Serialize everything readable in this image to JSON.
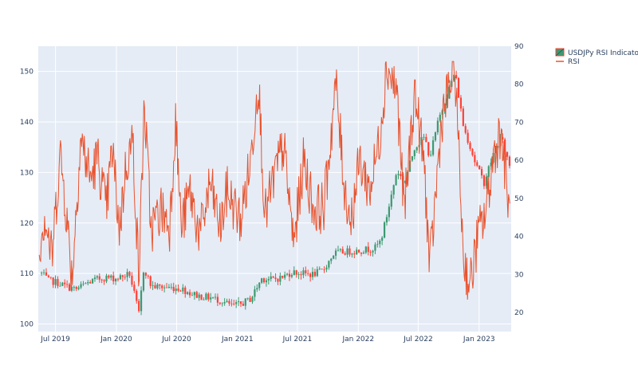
{
  "chart_data": {
    "type": "candlestick+line",
    "title": "",
    "legend": {
      "placement": "top-right",
      "entries": [
        "USDJPy RSI Indicator",
        "RSI"
      ]
    },
    "x_axis": {
      "range": [
        "2019-05-10",
        "2023-04-08"
      ],
      "tick_labels": [
        {
          "date": "2019-07-01",
          "label": "Jul 2019"
        },
        {
          "date": "2020-01-01",
          "label": "Jan 2020"
        },
        {
          "date": "2020-07-01",
          "label": "Jul 2020"
        },
        {
          "date": "2021-01-01",
          "label": "Jan 2021"
        },
        {
          "date": "2021-07-01",
          "label": "Jul 2021"
        },
        {
          "date": "2022-01-01",
          "label": "Jan 2022"
        },
        {
          "date": "2022-07-01",
          "label": "Jul 2022"
        },
        {
          "date": "2023-01-01",
          "label": "Jan 2023"
        }
      ],
      "grid": true
    },
    "y_axis_left": {
      "range": [
        98.5,
        155
      ],
      "ticks": [
        100,
        110,
        120,
        130,
        140,
        150
      ],
      "grid": true
    },
    "y_axis_right": {
      "range": [
        15,
        90
      ],
      "ticks": [
        20,
        30,
        40,
        50,
        60,
        70,
        80,
        90
      ],
      "grid": false
    },
    "colors": {
      "candle_up": "#3D9970",
      "candle_down": "#FF4136",
      "rsi_line": "#E8532E",
      "plot_bg": "#E5ECF6",
      "grid": "#ffffff"
    },
    "series": [
      {
        "name": "USDJPy RSI Indicator",
        "kind": "candlestick",
        "axis": "left",
        "approx_close": [
          [
            "2019-05-20",
            110.0
          ],
          [
            "2019-06-10",
            108.6
          ],
          [
            "2019-07-01",
            108.3
          ],
          [
            "2019-08-01",
            107.5
          ],
          [
            "2019-09-01",
            106.8
          ],
          [
            "2019-10-01",
            108.0
          ],
          [
            "2019-11-01",
            108.8
          ],
          [
            "2019-12-01",
            109.2
          ],
          [
            "2020-01-01",
            109.0
          ],
          [
            "2020-02-10",
            109.9
          ],
          [
            "2020-03-09",
            102.0
          ],
          [
            "2020-03-24",
            111.2
          ],
          [
            "2020-04-15",
            107.5
          ],
          [
            "2020-05-15",
            107.3
          ],
          [
            "2020-06-15",
            107.2
          ],
          [
            "2020-07-15",
            107.0
          ],
          [
            "2020-08-15",
            106.0
          ],
          [
            "2020-09-15",
            105.4
          ],
          [
            "2020-10-15",
            105.2
          ],
          [
            "2020-11-15",
            104.5
          ],
          [
            "2020-12-15",
            103.6
          ],
          [
            "2021-01-10",
            103.9
          ],
          [
            "2021-02-10",
            105.0
          ],
          [
            "2021-03-15",
            109.0
          ],
          [
            "2021-04-15",
            108.8
          ],
          [
            "2021-05-15",
            109.2
          ],
          [
            "2021-06-15",
            110.3
          ],
          [
            "2021-07-15",
            110.0
          ],
          [
            "2021-08-15",
            109.8
          ],
          [
            "2021-09-15",
            110.5
          ],
          [
            "2021-10-20",
            114.0
          ],
          [
            "2021-11-20",
            114.3
          ],
          [
            "2021-12-20",
            114.4
          ],
          [
            "2022-01-20",
            114.7
          ],
          [
            "2022-02-20",
            115.0
          ],
          [
            "2022-03-10",
            116.5
          ],
          [
            "2022-04-01",
            122.5
          ],
          [
            "2022-04-28",
            130.5
          ],
          [
            "2022-05-20",
            127.8
          ],
          [
            "2022-06-20",
            135.0
          ],
          [
            "2022-07-20",
            137.0
          ],
          [
            "2022-08-05",
            133.0
          ],
          [
            "2022-09-01",
            140.5
          ],
          [
            "2022-10-20",
            149.9
          ],
          [
            "2022-11-15",
            139.0
          ],
          [
            "2022-12-01",
            136.0
          ],
          [
            "2022-12-20",
            132.0
          ],
          [
            "2023-01-16",
            128.0
          ],
          [
            "2023-02-15",
            134.0
          ],
          [
            "2023-03-08",
            137.0
          ],
          [
            "2023-04-05",
            131.0
          ]
        ]
      },
      {
        "name": "RSI",
        "kind": "line",
        "axis": "right",
        "approx_points": [
          [
            "2019-05-13",
            38.0
          ],
          [
            "2019-05-30",
            46.0
          ],
          [
            "2019-06-20",
            34.0
          ],
          [
            "2019-07-15",
            62.0
          ],
          [
            "2019-07-30",
            50.0
          ],
          [
            "2019-08-20",
            29.0
          ],
          [
            "2019-09-15",
            66.0
          ],
          [
            "2019-10-15",
            55.0
          ],
          [
            "2019-11-05",
            61.0
          ],
          [
            "2019-12-01",
            47.0
          ],
          [
            "2019-12-20",
            63.0
          ],
          [
            "2020-01-10",
            42.0
          ],
          [
            "2020-02-01",
            60.0
          ],
          [
            "2020-02-20",
            65.0
          ],
          [
            "2020-03-09",
            29.0
          ],
          [
            "2020-03-25",
            75.0
          ],
          [
            "2020-04-15",
            42.0
          ],
          [
            "2020-05-15",
            47.0
          ],
          [
            "2020-06-10",
            43.0
          ],
          [
            "2020-06-28",
            71.0
          ],
          [
            "2020-07-15",
            42.0
          ],
          [
            "2020-08-10",
            52.0
          ],
          [
            "2020-09-10",
            40.0
          ],
          [
            "2020-10-10",
            54.0
          ],
          [
            "2020-11-10",
            42.0
          ],
          [
            "2020-12-01",
            52.0
          ],
          [
            "2021-01-10",
            44.0
          ],
          [
            "2021-02-10",
            60.0
          ],
          [
            "2021-03-05",
            82.0
          ],
          [
            "2021-03-25",
            45.0
          ],
          [
            "2021-04-20",
            55.0
          ],
          [
            "2021-05-20",
            64.0
          ],
          [
            "2021-06-20",
            38.0
          ],
          [
            "2021-07-20",
            60.0
          ],
          [
            "2021-08-20",
            47.0
          ],
          [
            "2021-09-20",
            48.0
          ],
          [
            "2021-10-25",
            80.0
          ],
          [
            "2021-11-20",
            53.0
          ],
          [
            "2021-12-10",
            44.0
          ],
          [
            "2022-01-05",
            60.0
          ],
          [
            "2022-02-05",
            52.0
          ],
          [
            "2022-03-05",
            65.0
          ],
          [
            "2022-03-28",
            85.0
          ],
          [
            "2022-04-28",
            78.0
          ],
          [
            "2022-05-20",
            46.0
          ],
          [
            "2022-06-20",
            78.0
          ],
          [
            "2022-07-20",
            58.0
          ],
          [
            "2022-08-05",
            31.0
          ],
          [
            "2022-09-10",
            71.0
          ],
          [
            "2022-10-20",
            85.0
          ],
          [
            "2022-11-15",
            34.0
          ],
          [
            "2022-12-05",
            27.0
          ],
          [
            "2022-12-28",
            40.0
          ],
          [
            "2023-01-20",
            46.0
          ],
          [
            "2023-02-15",
            62.0
          ],
          [
            "2023-03-08",
            68.0
          ],
          [
            "2023-04-05",
            44.0
          ]
        ]
      }
    ]
  }
}
